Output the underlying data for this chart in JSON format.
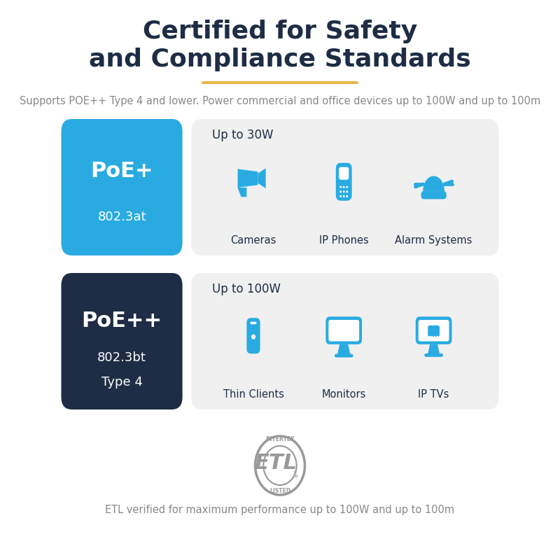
{
  "title_line1": "Certified for Safety",
  "title_line2": "and Compliance Standards",
  "title_color": "#1e2d45",
  "title_fontsize": 26,
  "accent_line_color": "#e8b84b",
  "subtitle": "Supports POE++ Type 4 and lower. Power commercial and office devices up to 100W and up to 100m",
  "subtitle_color": "#888888",
  "subtitle_fontsize": 10.5,
  "poe_plus_label": "PoE+",
  "poe_plus_sub": "802.3at",
  "poe_plus_bg": "#29abe2",
  "poe_plus_text": "#ffffff",
  "poe_plusplus_label": "PoE++",
  "poe_plusplus_sub1": "802.3bt",
  "poe_plusplus_sub2": "Type 4",
  "poe_plusplus_bg": "#1e2d45",
  "poe_plusplus_text": "#ffffff",
  "row1_power": "Up to 30W",
  "row1_devices": [
    "Cameras",
    "IP Phones",
    "Alarm Systems"
  ],
  "row2_power": "Up to 100W",
  "row2_devices": [
    "Thin Clients",
    "Monitors",
    "IP TVs"
  ],
  "device_icon_color": "#29abe2",
  "panel_bg": "#f0f0f0",
  "etl_text": "ETL verified for maximum performance up to 100W and up to 100m",
  "etl_color": "#888888",
  "etl_fontsize": 10.5,
  "bg_color": "#ffffff"
}
